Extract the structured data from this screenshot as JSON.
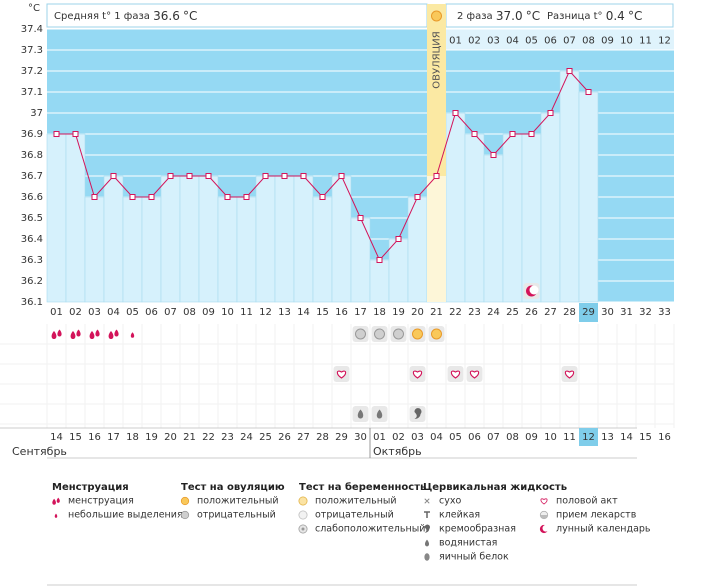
{
  "chart_data": {
    "type": "line",
    "y_label": "°C",
    "categories": [
      "01",
      "02",
      "03",
      "04",
      "05",
      "06",
      "07",
      "08",
      "09",
      "10",
      "11",
      "12",
      "13",
      "14",
      "15",
      "16",
      "17",
      "18",
      "19",
      "20",
      "21",
      "22",
      "23",
      "24",
      "25",
      "26",
      "27",
      "28",
      "29",
      "30",
      "31",
      "32",
      "33"
    ],
    "values": [
      36.9,
      36.9,
      36.6,
      36.7,
      36.6,
      36.6,
      36.7,
      36.7,
      36.7,
      36.6,
      36.6,
      36.7,
      36.7,
      36.7,
      36.6,
      36.7,
      36.5,
      36.3,
      36.4,
      36.6,
      36.7,
      37,
      36.9,
      36.8,
      36.9,
      36.9,
      37,
      37.2,
      37.1,
      null,
      null,
      null,
      null
    ],
    "color": "#d3145a",
    "bar_color": "#d6f1fc",
    "background_color": "#95d9f3",
    "ylim": [
      36.1,
      37.4
    ],
    "yticks": [
      36.1,
      36.2,
      36.3,
      36.4,
      36.5,
      36.6,
      36.7,
      36.8,
      36.9,
      37,
      37.1,
      37.2,
      37.3,
      37.4
    ],
    "grid": true,
    "current_day": 29,
    "ovulation": {
      "day": 21,
      "label": "ОВУЛЯЦИЯ"
    },
    "phase2_days": [
      "01",
      "02",
      "03",
      "04",
      "05",
      "06",
      "07",
      "08",
      "09",
      "10",
      "11",
      "12"
    ],
    "moon": {
      "day": 26,
      "marker": "moon"
    },
    "dates": [
      {
        "label": "14",
        "holiday": true
      },
      {
        "label": "15",
        "holiday": true
      },
      {
        "label": "16",
        "holiday": false
      },
      {
        "label": "17",
        "holiday": false
      },
      {
        "label": "18",
        "holiday": false
      },
      {
        "label": "19",
        "holiday": false
      },
      {
        "label": "20",
        "holiday": false
      },
      {
        "label": "21",
        "holiday": true
      },
      {
        "label": "22",
        "holiday": true
      },
      {
        "label": "23",
        "holiday": false
      },
      {
        "label": "24",
        "holiday": false
      },
      {
        "label": "25",
        "holiday": false
      },
      {
        "label": "26",
        "holiday": false
      },
      {
        "label": "27",
        "holiday": false
      },
      {
        "label": "28",
        "holiday": true
      },
      {
        "label": "29",
        "holiday": true
      },
      {
        "label": "30",
        "holiday": false
      },
      {
        "label": "01",
        "holiday": false
      },
      {
        "label": "02",
        "holiday": false
      },
      {
        "label": "03",
        "holiday": false
      },
      {
        "label": "04",
        "holiday": false
      },
      {
        "label": "05",
        "holiday": true
      },
      {
        "label": "06",
        "holiday": true
      },
      {
        "label": "07",
        "holiday": false
      },
      {
        "label": "08",
        "holiday": false
      },
      {
        "label": "09",
        "holiday": false
      },
      {
        "label": "10",
        "holiday": false
      },
      {
        "label": "11",
        "holiday": false
      },
      {
        "label": "12",
        "holiday": true
      },
      {
        "label": "13",
        "holiday": true
      },
      {
        "label": "14",
        "holiday": false
      },
      {
        "label": "15",
        "holiday": false
      },
      {
        "label": "16",
        "holiday": false
      }
    ],
    "months": [
      {
        "label": "Сентябрь",
        "day": 1
      },
      {
        "label": "Октябрь",
        "day": 18
      }
    ],
    "icon_rows": [
      [
        {
          "day": 1,
          "marker": "drops"
        },
        {
          "day": 2,
          "marker": "drops"
        },
        {
          "day": 3,
          "marker": "drops"
        },
        {
          "day": 4,
          "marker": "drops"
        },
        {
          "day": 5,
          "marker": "drop"
        },
        {
          "day": 17,
          "marker": "test-neg"
        },
        {
          "day": 18,
          "marker": "test-neg"
        },
        {
          "day": 19,
          "marker": "test-neg"
        },
        {
          "day": 20,
          "marker": "test-pos"
        },
        {
          "day": 21,
          "marker": "test-pos"
        }
      ],
      [],
      [
        {
          "day": 16,
          "marker": "heart"
        },
        {
          "day": 20,
          "marker": "heart"
        },
        {
          "day": 22,
          "marker": "heart"
        },
        {
          "day": 23,
          "marker": "heart"
        },
        {
          "day": 28,
          "marker": "heart"
        }
      ],
      [],
      [
        {
          "day": 17,
          "marker": "watery"
        },
        {
          "day": 18,
          "marker": "watery"
        },
        {
          "day": 20,
          "marker": "creamy"
        }
      ]
    ]
  },
  "header": {
    "phase1": {
      "label": "Средняя t° 1 фаза",
      "value": 36.6,
      "unit": "°C"
    },
    "phase2": {
      "label": "2 фаза",
      "value": 37,
      "value_label": "37.0",
      "unit": "°C"
    },
    "difference": {
      "label": "Разница t°",
      "value": 0.4,
      "unit": "°C"
    }
  },
  "legend": [
    {
      "title": "Менструация",
      "items": [
        {
          "label": "менструация",
          "marker": "drops"
        },
        {
          "label": "небольшие выделения",
          "marker": "drop"
        }
      ]
    },
    {
      "title": "Тест на овуляцию",
      "items": [
        {
          "label": "положительный",
          "marker": "test-pos"
        },
        {
          "label": "отрицательный",
          "marker": "test-neg"
        }
      ]
    },
    {
      "title": "Тест на беременность",
      "items": [
        {
          "label": "положительный",
          "marker": "preg-pos"
        },
        {
          "label": "отрицательный",
          "marker": "preg-neg"
        },
        {
          "label": "слабоположительный",
          "marker": "preg-weak"
        }
      ]
    },
    {
      "title": "Цервикальная жидкость",
      "items": [
        {
          "label": "сухо",
          "marker": "dry"
        },
        {
          "label": "клейкая",
          "marker": "sticky"
        },
        {
          "label": "кремообразная",
          "marker": "creamy"
        },
        {
          "label": "водянистая",
          "marker": "watery"
        },
        {
          "label": "яичный белок",
          "marker": "eggwhite"
        }
      ]
    },
    {
      "items": [
        {
          "label": "половой акт",
          "marker": "heart"
        },
        {
          "label": "прием лекарств",
          "marker": "pill"
        },
        {
          "label": "лунный календарь",
          "marker": "moon"
        }
      ]
    }
  ]
}
